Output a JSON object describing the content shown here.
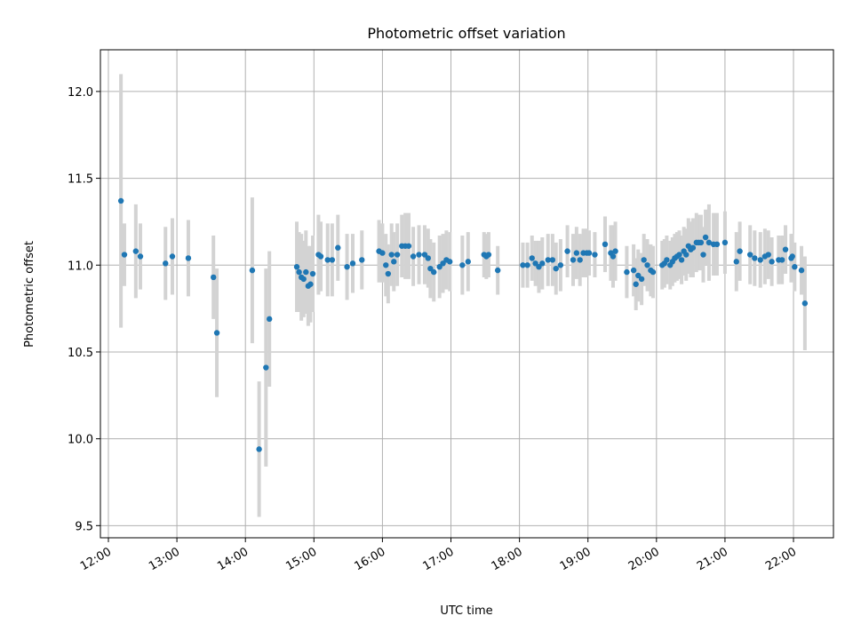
{
  "chart_data": {
    "type": "scatter",
    "title": "Photometric offset variation",
    "xlabel": "UTC time",
    "ylabel": "Photometric offset",
    "xlim": [
      "11:53",
      "22:35"
    ],
    "ylim": [
      9.43,
      12.24
    ],
    "x_ticks": [
      "12:00",
      "13:00",
      "14:00",
      "15:00",
      "16:00",
      "17:00",
      "18:00",
      "19:00",
      "20:00",
      "21:00",
      "22:00"
    ],
    "y_ticks": [
      "9.5",
      "10.0",
      "10.5",
      "11.0",
      "11.5",
      "12.0"
    ],
    "grid": true,
    "legend": "none",
    "colors": {
      "marker": "#1f77b4",
      "errorbar": "#d3d3d3",
      "grid": "#b0b0b0",
      "axes": "#000000"
    },
    "series": [
      {
        "x": [
          "12:11",
          "12:14",
          "12:24",
          "12:28",
          "12:50",
          "12:56",
          "13:10",
          "13:32",
          "13:35",
          "14:06",
          "14:12",
          "14:18",
          "14:21",
          "14:45",
          "14:47",
          "14:49",
          "14:51",
          "14:53",
          "14:55",
          "14:57",
          "14:59",
          "15:04",
          "15:06",
          "15:12",
          "15:16",
          "15:21",
          "15:29",
          "15:34",
          "15:42",
          "15:57",
          "16:00",
          "16:03",
          "16:05",
          "16:08",
          "16:10",
          "16:13",
          "16:17",
          "16:20",
          "16:23",
          "16:27",
          "16:32",
          "16:37",
          "16:40",
          "16:42",
          "16:45",
          "16:50",
          "16:53",
          "16:56",
          "16:59",
          "17:10",
          "17:15",
          "17:29",
          "17:31",
          "17:33",
          "17:41",
          "18:03",
          "18:07",
          "18:11",
          "18:14",
          "18:17",
          "18:20",
          "18:25",
          "18:29",
          "18:32",
          "18:36",
          "18:42",
          "18:47",
          "18:50",
          "18:53",
          "18:56",
          "18:59",
          "19:01",
          "19:06",
          "19:15",
          "19:20",
          "19:22",
          "19:24",
          "19:34",
          "19:40",
          "19:42",
          "19:44",
          "19:47",
          "19:49",
          "19:52",
          "19:55",
          "19:57",
          "20:05",
          "20:07",
          "20:09",
          "20:12",
          "20:14",
          "20:16",
          "20:18",
          "20:20",
          "20:22",
          "20:24",
          "20:26",
          "20:28",
          "20:30",
          "20:32",
          "20:35",
          "20:37",
          "20:39",
          "20:41",
          "20:43",
          "20:46",
          "20:50",
          "20:53",
          "21:00",
          "21:10",
          "21:13",
          "21:22",
          "21:26",
          "21:31",
          "21:35",
          "21:38",
          "21:41",
          "21:47",
          "21:50",
          "21:53",
          "21:58",
          "21:59",
          "22:01",
          "22:07",
          "22:10"
        ],
        "y": [
          11.37,
          11.06,
          11.08,
          11.05,
          11.01,
          11.05,
          11.04,
          10.93,
          10.61,
          10.97,
          9.94,
          10.41,
          10.69,
          10.99,
          10.96,
          10.93,
          10.92,
          10.96,
          10.88,
          10.89,
          10.95,
          11.06,
          11.05,
          11.03,
          11.03,
          11.1,
          10.99,
          11.01,
          11.03,
          11.08,
          11.07,
          11.0,
          10.95,
          11.06,
          11.02,
          11.06,
          11.11,
          11.11,
          11.11,
          11.05,
          11.06,
          11.06,
          11.04,
          10.98,
          10.96,
          10.99,
          11.01,
          11.03,
          11.02,
          11.0,
          11.02,
          11.06,
          11.05,
          11.06,
          10.97,
          11.0,
          11.0,
          11.04,
          11.01,
          10.99,
          11.01,
          11.03,
          11.03,
          10.98,
          11.0,
          11.08,
          11.03,
          11.07,
          11.03,
          11.07,
          11.07,
          11.07,
          11.06,
          11.12,
          11.07,
          11.05,
          11.08,
          10.96,
          10.97,
          10.89,
          10.94,
          10.92,
          11.03,
          11.0,
          10.97,
          10.96,
          11.0,
          11.01,
          11.03,
          11.0,
          11.02,
          11.04,
          11.05,
          11.06,
          11.03,
          11.08,
          11.06,
          11.11,
          11.09,
          11.1,
          11.13,
          11.13,
          11.13,
          11.06,
          11.16,
          11.13,
          11.12,
          11.12,
          11.13,
          11.02,
          11.08,
          11.06,
          11.04,
          11.03,
          11.05,
          11.06,
          11.02,
          11.03,
          11.03,
          11.09,
          11.04,
          11.05,
          10.99,
          10.97,
          10.78
        ],
        "yerr": [
          0.73,
          0.18,
          0.27,
          0.19,
          0.21,
          0.22,
          0.22,
          0.24,
          0.37,
          0.42,
          0.39,
          0.57,
          0.39,
          0.26,
          0.23,
          0.25,
          0.22,
          0.24,
          0.23,
          0.22,
          0.22,
          0.23,
          0.2,
          0.21,
          0.21,
          0.19,
          0.19,
          0.17,
          0.17,
          0.18,
          0.17,
          0.18,
          0.17,
          0.18,
          0.17,
          0.18,
          0.18,
          0.19,
          0.19,
          0.17,
          0.17,
          0.17,
          0.17,
          0.17,
          0.17,
          0.18,
          0.17,
          0.17,
          0.17,
          0.17,
          0.17,
          0.13,
          0.13,
          0.13,
          0.14,
          0.13,
          0.13,
          0.13,
          0.13,
          0.15,
          0.15,
          0.15,
          0.15,
          0.15,
          0.15,
          0.15,
          0.15,
          0.15,
          0.15,
          0.14,
          0.14,
          0.13,
          0.13,
          0.16,
          0.16,
          0.18,
          0.17,
          0.15,
          0.15,
          0.15,
          0.15,
          0.15,
          0.15,
          0.15,
          0.15,
          0.15,
          0.14,
          0.14,
          0.14,
          0.14,
          0.14,
          0.14,
          0.14,
          0.14,
          0.14,
          0.14,
          0.15,
          0.16,
          0.16,
          0.17,
          0.17,
          0.16,
          0.16,
          0.16,
          0.16,
          0.22,
          0.18,
          0.18,
          0.18,
          0.17,
          0.17,
          0.17,
          0.16,
          0.16,
          0.16,
          0.14,
          0.14,
          0.14,
          0.14,
          0.14,
          0.14,
          0.13,
          0.14,
          0.14,
          0.27
        ]
      }
    ]
  }
}
